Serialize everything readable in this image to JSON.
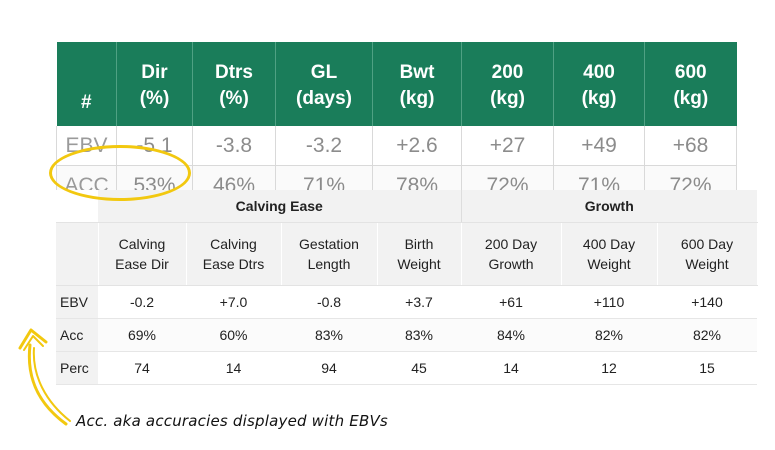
{
  "top_table": {
    "headers": [
      {
        "line1": "#",
        "line2": ""
      },
      {
        "line1": "Dir",
        "line2": "(%)"
      },
      {
        "line1": "Dtrs",
        "line2": "(%)"
      },
      {
        "line1": "GL",
        "line2": "(days)"
      },
      {
        "line1": "Bwt",
        "line2": "(kg)"
      },
      {
        "line1": "200",
        "line2": "(kg)"
      },
      {
        "line1": "400",
        "line2": "(kg)"
      },
      {
        "line1": "600",
        "line2": "(kg)"
      }
    ],
    "rows": [
      {
        "label": "EBV",
        "values": [
          "-5.1",
          "-3.8",
          "-3.2",
          "+2.6",
          "+27",
          "+49",
          "+68"
        ]
      },
      {
        "label": "ACC",
        "values": [
          "53%",
          "46%",
          "71%",
          "78%",
          "72%",
          "71%",
          "72%"
        ]
      }
    ],
    "header_color": "#1a7d5a"
  },
  "bottom_table": {
    "groups": [
      "Calving Ease",
      "Growth"
    ],
    "columns": [
      {
        "line1": "Calving",
        "line2": "Ease Dir"
      },
      {
        "line1": "Calving",
        "line2": "Ease Dtrs"
      },
      {
        "line1": "Gestation",
        "line2": "Length"
      },
      {
        "line1": "Birth",
        "line2": "Weight"
      },
      {
        "line1": "200 Day",
        "line2": "Growth"
      },
      {
        "line1": "400 Day",
        "line2": "Weight"
      },
      {
        "line1": "600 Day",
        "line2": "Weight"
      }
    ],
    "rows": [
      {
        "label": "EBV",
        "values": [
          "-0.2",
          "+7.0",
          "-0.8",
          "+3.7",
          "+61",
          "+110",
          "+140"
        ]
      },
      {
        "label": "Acc",
        "values": [
          "69%",
          "60%",
          "83%",
          "83%",
          "84%",
          "82%",
          "82%"
        ]
      },
      {
        "label": "Perc",
        "values": [
          "74",
          "14",
          "94",
          "45",
          "14",
          "12",
          "15"
        ]
      }
    ]
  },
  "annotation": {
    "caption": "Acc. aka accuracies displayed with EBVs",
    "highlight_color": "#f2c80f",
    "arrow_icon": "curved-arrow-icon"
  }
}
